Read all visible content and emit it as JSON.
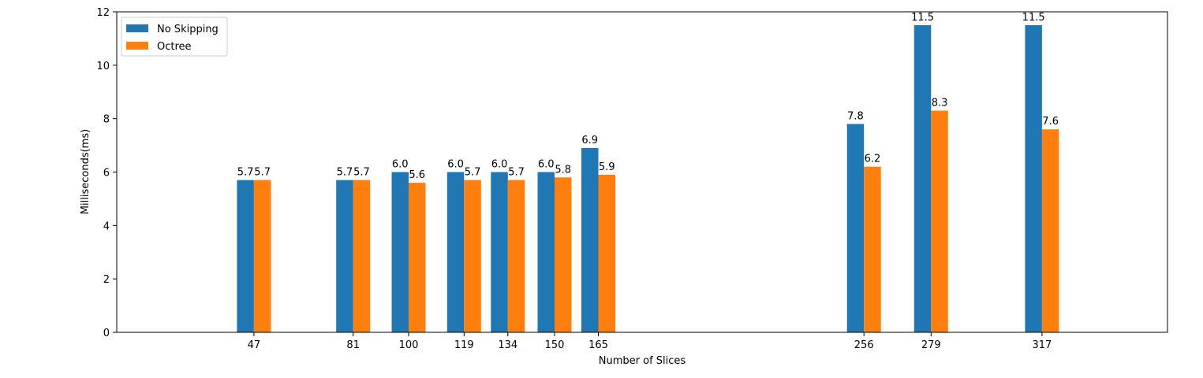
{
  "chart_data": {
    "type": "bar",
    "xlabel": "Number of Slices",
    "ylabel": "Milliseconds(ms)",
    "x": [
      47,
      81,
      100,
      119,
      134,
      150,
      165,
      256,
      279,
      317
    ],
    "xlim": [
      0,
      360
    ],
    "ylim": [
      0,
      12
    ],
    "yticks": [
      0,
      2,
      4,
      6,
      8,
      10,
      12
    ],
    "grid": false,
    "legend_position": "top-left",
    "series": [
      {
        "name": "No Skipping",
        "color": "#1f77b4",
        "values": [
          5.7,
          5.7,
          6.0,
          6.0,
          6.0,
          6.0,
          6.9,
          7.8,
          11.5,
          11.5
        ]
      },
      {
        "name": "Octree",
        "color": "#ff7f0e",
        "values": [
          5.7,
          5.7,
          5.6,
          5.7,
          5.7,
          5.8,
          5.9,
          6.2,
          8.3,
          7.6
        ]
      }
    ]
  }
}
